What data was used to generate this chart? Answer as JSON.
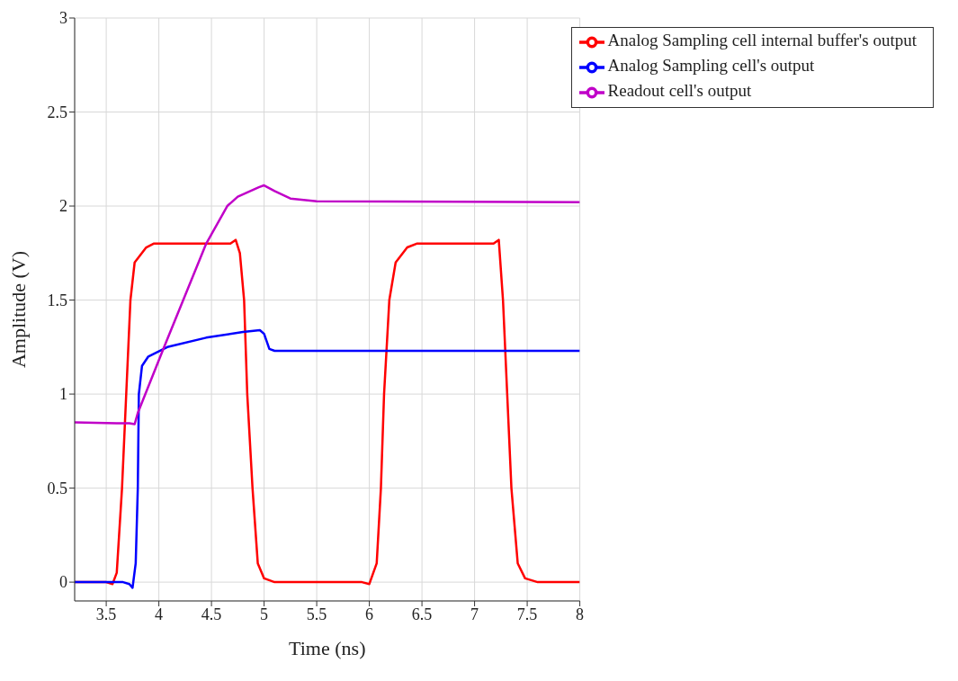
{
  "chart_data": {
    "type": "line",
    "xlabel": "Time (ns)",
    "ylabel": "Amplitude (V)",
    "xlim": [
      3.2,
      8
    ],
    "xticks": [
      3.5,
      4,
      4.5,
      5,
      5.5,
      6,
      6.5,
      7,
      7.5,
      8
    ],
    "ylim": [
      -0.1,
      3
    ],
    "yticks": [
      0,
      0.5,
      1,
      1.5,
      2,
      2.5,
      3
    ],
    "grid": true,
    "legend": "top right",
    "marker": "none",
    "line_style": "solid",
    "series": [
      {
        "name": "Analog Sampling cell internal buffer's output",
        "color": "#ff0000",
        "x": [
          3.2,
          3.5,
          3.56,
          3.6,
          3.65,
          3.69,
          3.73,
          3.77,
          3.88,
          3.95,
          4.68,
          4.73,
          4.77,
          4.81,
          4.84,
          4.89,
          4.94,
          5.0,
          5.1,
          5.93,
          6.0,
          6.07,
          6.11,
          6.14,
          6.19,
          6.25,
          6.36,
          6.45,
          7.18,
          7.23,
          7.27,
          7.31,
          7.35,
          7.41,
          7.48,
          7.6,
          8
        ],
        "values": [
          0,
          0,
          -0.01,
          0.05,
          0.5,
          1.0,
          1.5,
          1.7,
          1.78,
          1.8,
          1.8,
          1.82,
          1.75,
          1.5,
          1.0,
          0.5,
          0.1,
          0.02,
          0,
          0,
          -0.01,
          0.1,
          0.5,
          1.0,
          1.5,
          1.7,
          1.78,
          1.8,
          1.8,
          1.82,
          1.5,
          1.0,
          0.5,
          0.1,
          0.02,
          0,
          0
        ]
      },
      {
        "name": "Analog Sampling cell's output",
        "color": "#0000ff",
        "x": [
          3.2,
          3.66,
          3.72,
          3.75,
          3.78,
          3.8,
          3.81,
          3.84,
          3.9,
          4.08,
          4.45,
          4.8,
          4.96,
          5.0,
          5.05,
          5.1,
          8
        ],
        "values": [
          0,
          0,
          -0.01,
          -0.03,
          0.1,
          0.5,
          1.0,
          1.15,
          1.2,
          1.25,
          1.3,
          1.33,
          1.34,
          1.32,
          1.24,
          1.23,
          1.23
        ]
      },
      {
        "name": "Readout cell's output",
        "color": "#c000c8",
        "x": [
          3.2,
          3.6,
          3.72,
          3.77,
          3.8,
          4.05,
          4.45,
          4.65,
          4.75,
          4.95,
          5.0,
          5.1,
          5.25,
          5.5,
          8
        ],
        "values": [
          0.85,
          0.845,
          0.845,
          0.84,
          0.9,
          1.25,
          1.8,
          2.0,
          2.05,
          2.1,
          2.11,
          2.08,
          2.04,
          2.025,
          2.02
        ]
      }
    ]
  }
}
